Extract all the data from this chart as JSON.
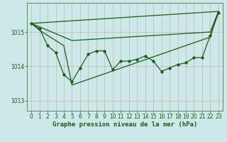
{
  "bg_color": "#cce8e8",
  "grid_color": "#aacccc",
  "line_color": "#1a5c1a",
  "marker_color": "#1a5c1a",
  "xlabel": "Graphe pression niveau de la mer (hPa)",
  "ylim": [
    1012.7,
    1015.85
  ],
  "xlim": [
    -0.5,
    23.5
  ],
  "yticks": [
    1013,
    1014,
    1015
  ],
  "xticks": [
    0,
    1,
    2,
    3,
    4,
    5,
    6,
    7,
    8,
    9,
    10,
    11,
    12,
    13,
    14,
    15,
    16,
    17,
    18,
    19,
    20,
    21,
    22,
    23
  ],
  "series1_x": [
    0,
    1,
    2,
    3,
    4,
    5,
    6,
    7,
    8,
    9,
    10,
    11,
    12,
    13,
    14,
    15,
    16,
    17,
    18,
    19,
    20,
    21,
    22,
    23
  ],
  "series1_y": [
    1015.25,
    1015.1,
    1014.6,
    1014.4,
    1013.75,
    1013.55,
    1013.95,
    1014.35,
    1014.45,
    1014.45,
    1013.9,
    1014.15,
    1014.15,
    1014.2,
    1014.3,
    1014.15,
    1013.85,
    1013.95,
    1014.05,
    1014.1,
    1014.25,
    1014.25,
    1014.9,
    1015.55
  ],
  "series2_x": [
    0,
    1,
    2,
    4,
    5,
    22,
    23
  ],
  "series2_y": [
    1015.25,
    1015.05,
    1014.9,
    1014.6,
    1013.45,
    1014.85,
    1015.6
  ],
  "series3_x": [
    0,
    5,
    22,
    23
  ],
  "series3_y": [
    1015.25,
    1014.75,
    1015.0,
    1015.6
  ],
  "series4_x": [
    0,
    23
  ],
  "series4_y": [
    1015.25,
    1015.6
  ],
  "tick_fontsize": 5.5,
  "xlabel_fontsize": 6.5,
  "tick_color": "#1a5c1a",
  "spine_color": "#5a8a5a"
}
